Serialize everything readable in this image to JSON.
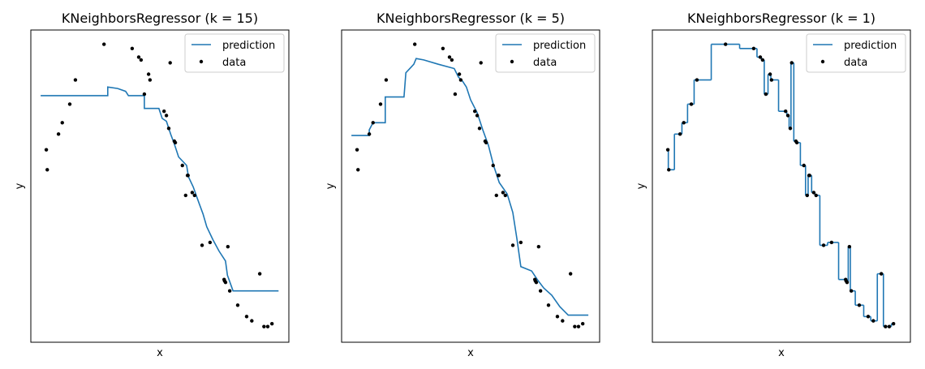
{
  "chart_data": [
    {
      "type": "line",
      "title": "KNeighborsRegressor (k = 15)",
      "xlabel": "x",
      "ylabel": "y",
      "xlim": [
        -0.25,
        5.25
      ],
      "ylim": [
        -1.1,
        1.09
      ],
      "legend": "upper right",
      "series": [
        {
          "name": "prediction",
          "type": "line",
          "color": "#1f77b4",
          "x": [
            -0.04,
            1.39,
            1.39,
            1.6,
            1.77,
            1.83,
            2.17,
            2.17,
            2.48,
            2.55,
            2.64,
            2.73,
            2.81,
            2.9,
            3.07,
            3.11,
            3.21,
            3.33,
            3.42,
            3.5,
            3.63,
            3.76,
            3.9,
            3.94,
            4.06,
            5.03
          ],
          "values": [
            0.63,
            0.63,
            0.69,
            0.68,
            0.66,
            0.63,
            0.63,
            0.54,
            0.54,
            0.47,
            0.45,
            0.36,
            0.29,
            0.2,
            0.14,
            0.06,
            -0.01,
            -0.12,
            -0.2,
            -0.29,
            -0.38,
            -0.46,
            -0.53,
            -0.63,
            -0.74,
            -0.74
          ]
        },
        {
          "name": "data",
          "type": "scatter",
          "color": "#000000",
          "x": [
            0.08,
            0.1,
            0.34,
            0.42,
            0.58,
            0.7,
            1.31,
            1.91,
            2.05,
            2.1,
            2.17,
            2.26,
            2.29,
            2.59,
            2.64,
            2.69,
            2.72,
            2.81,
            2.83,
            2.98,
            3.05,
            3.09,
            3.1,
            3.19,
            3.24,
            3.4,
            3.57,
            3.87,
            3.88,
            3.9,
            3.95,
            3.99,
            4.16,
            4.35,
            4.46,
            4.63,
            4.72,
            4.8,
            4.89
          ],
          "values": [
            0.25,
            0.11,
            0.36,
            0.44,
            0.57,
            0.74,
            0.99,
            0.96,
            0.9,
            0.88,
            0.64,
            0.78,
            0.74,
            0.52,
            0.49,
            0.4,
            0.86,
            0.31,
            0.3,
            0.14,
            -0.07,
            0.07,
            0.07,
            -0.05,
            -0.07,
            -0.42,
            -0.4,
            -0.66,
            -0.67,
            -0.68,
            -0.43,
            -0.74,
            -0.84,
            -0.92,
            -0.95,
            -0.62,
            -0.99,
            -0.99,
            -0.97
          ]
        }
      ]
    },
    {
      "type": "line",
      "title": "KNeighborsRegressor (k = 5)",
      "xlabel": "x",
      "ylabel": "y",
      "xlim": [
        -0.25,
        5.25
      ],
      "ylim": [
        -1.1,
        1.09
      ],
      "legend": "upper right",
      "series": [
        {
          "name": "prediction",
          "type": "line",
          "color": "#1f77b4",
          "x": [
            -0.04,
            0.34,
            0.34,
            0.42,
            0.68,
            0.68,
            1.08,
            1.12,
            1.29,
            1.34,
            1.5,
            1.81,
            2.15,
            2.24,
            2.33,
            2.41,
            2.5,
            2.64,
            2.76,
            2.88,
            2.99,
            3.11,
            3.28,
            3.4,
            3.49,
            3.57,
            3.8,
            3.92,
            4.06,
            4.23,
            4.4,
            4.58,
            5.01
          ],
          "values": [
            0.35,
            0.35,
            0.39,
            0.44,
            0.44,
            0.62,
            0.62,
            0.79,
            0.85,
            0.89,
            0.88,
            0.85,
            0.82,
            0.76,
            0.73,
            0.69,
            0.6,
            0.51,
            0.39,
            0.28,
            0.14,
            0.02,
            -0.06,
            -0.19,
            -0.38,
            -0.57,
            -0.6,
            -0.66,
            -0.72,
            -0.77,
            -0.85,
            -0.91,
            -0.91
          ]
        },
        {
          "name": "data",
          "type": "scatter",
          "color": "#000000",
          "x": [
            0.08,
            0.1,
            0.34,
            0.42,
            0.58,
            0.7,
            1.31,
            1.91,
            2.05,
            2.1,
            2.17,
            2.26,
            2.29,
            2.59,
            2.64,
            2.69,
            2.72,
            2.81,
            2.83,
            2.98,
            3.05,
            3.09,
            3.1,
            3.19,
            3.24,
            3.4,
            3.57,
            3.87,
            3.88,
            3.9,
            3.95,
            3.99,
            4.16,
            4.35,
            4.46,
            4.63,
            4.72,
            4.8,
            4.89
          ],
          "values": [
            0.25,
            0.11,
            0.36,
            0.44,
            0.57,
            0.74,
            0.99,
            0.96,
            0.9,
            0.88,
            0.64,
            0.78,
            0.74,
            0.52,
            0.49,
            0.4,
            0.86,
            0.31,
            0.3,
            0.14,
            -0.07,
            0.07,
            0.07,
            -0.05,
            -0.07,
            -0.42,
            -0.4,
            -0.66,
            -0.67,
            -0.68,
            -0.43,
            -0.74,
            -0.84,
            -0.92,
            -0.95,
            -0.62,
            -0.99,
            -0.99,
            -0.97
          ]
        }
      ]
    },
    {
      "type": "line",
      "title": "KNeighborsRegressor (k = 1)",
      "xlabel": "x",
      "ylabel": "y",
      "xlim": [
        -0.25,
        5.25
      ],
      "ylim": [
        -1.1,
        1.09
      ],
      "legend": "upper right",
      "series": [
        {
          "name": "prediction",
          "type": "line",
          "drawstyle": "steps-mid",
          "color": "#1f77b4",
          "x": [
            0.08,
            0.1,
            0.34,
            0.42,
            0.58,
            0.7,
            1.31,
            1.91,
            2.05,
            2.1,
            2.17,
            2.26,
            2.29,
            2.59,
            2.64,
            2.69,
            2.72,
            2.81,
            2.83,
            2.98,
            3.05,
            3.09,
            3.1,
            3.19,
            3.24,
            3.4,
            3.57,
            3.87,
            3.88,
            3.9,
            3.95,
            3.99,
            4.16,
            4.35,
            4.46,
            4.63,
            4.72,
            4.8,
            4.89
          ],
          "values": [
            0.25,
            0.11,
            0.36,
            0.44,
            0.57,
            0.74,
            0.99,
            0.96,
            0.9,
            0.88,
            0.64,
            0.78,
            0.74,
            0.52,
            0.49,
            0.4,
            0.86,
            0.31,
            0.3,
            0.14,
            -0.07,
            0.07,
            0.07,
            -0.05,
            -0.07,
            -0.42,
            -0.4,
            -0.66,
            -0.67,
            -0.68,
            -0.43,
            -0.74,
            -0.84,
            -0.92,
            -0.95,
            -0.62,
            -0.99,
            -0.99,
            -0.97
          ]
        },
        {
          "name": "data",
          "type": "scatter",
          "color": "#000000",
          "x": [
            0.08,
            0.1,
            0.34,
            0.42,
            0.58,
            0.7,
            1.31,
            1.91,
            2.05,
            2.1,
            2.17,
            2.26,
            2.29,
            2.59,
            2.64,
            2.69,
            2.72,
            2.81,
            2.83,
            2.98,
            3.05,
            3.09,
            3.1,
            3.19,
            3.24,
            3.4,
            3.57,
            3.87,
            3.88,
            3.9,
            3.95,
            3.99,
            4.16,
            4.35,
            4.46,
            4.63,
            4.72,
            4.8,
            4.89
          ],
          "values": [
            0.25,
            0.11,
            0.36,
            0.44,
            0.57,
            0.74,
            0.99,
            0.96,
            0.9,
            0.88,
            0.64,
            0.78,
            0.74,
            0.52,
            0.49,
            0.4,
            0.86,
            0.31,
            0.3,
            0.14,
            -0.07,
            0.07,
            0.07,
            -0.05,
            -0.07,
            -0.42,
            -0.4,
            -0.66,
            -0.67,
            -0.68,
            -0.43,
            -0.74,
            -0.84,
            -0.92,
            -0.95,
            -0.62,
            -0.99,
            -0.99,
            -0.97
          ]
        }
      ]
    }
  ]
}
